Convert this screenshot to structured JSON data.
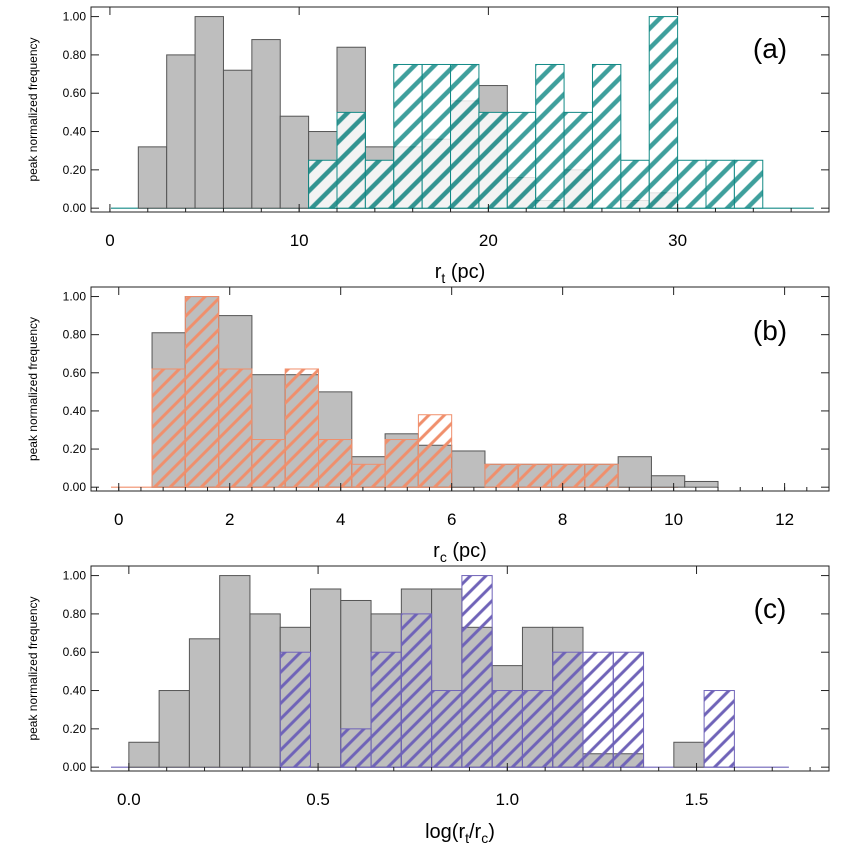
{
  "colors": {
    "gray_fill": "#bebebe",
    "gray_edge": "#555555",
    "teal": "#138a86",
    "salmon": "#f08f6c",
    "purple": "#6f63b8"
  },
  "ylabel": "peak normalized frequency",
  "chart_data": [
    {
      "type": "bar",
      "panel": "(a)",
      "xlabel": "r_t (pc)",
      "xlabel_main": "r",
      "xlabel_sub": "t",
      "xlabel_rest": " (pc)",
      "xlim": [
        -1,
        38
      ],
      "ylim": [
        -0.02,
        1.05
      ],
      "bin_width": 1.5,
      "grid": false,
      "xticks": [
        0,
        10,
        20,
        30
      ],
      "yticks": [
        0.0,
        0.2,
        0.4,
        0.6,
        0.8,
        1.0
      ],
      "ytick_labels": [
        "0.00",
        "0.20",
        "0.40",
        "0.60",
        "0.80",
        "1.00"
      ],
      "series": [
        {
          "style": "solid-gray",
          "bin_starts": [
            1.5,
            3.0,
            4.5,
            6.0,
            7.5,
            9.0,
            10.5,
            12.0,
            13.5,
            15.0,
            16.5,
            18.0,
            19.5,
            21.0,
            22.5,
            24.0,
            25.5,
            27.0,
            28.5
          ],
          "values": [
            0.32,
            0.8,
            1.0,
            0.72,
            0.88,
            0.48,
            0.4,
            0.84,
            0.32,
            0.32,
            0.36,
            0.56,
            0.64,
            0.16,
            0.04,
            0.2,
            0.0,
            0.04,
            0.08
          ]
        },
        {
          "style": "hatched-teal",
          "bin_starts": [
            10.5,
            12.0,
            13.5,
            15.0,
            16.5,
            18.0,
            19.5,
            21.0,
            22.5,
            24.0,
            25.5,
            27.0,
            28.5,
            30.0,
            31.5,
            33.0
          ],
          "values": [
            0.25,
            0.5,
            0.25,
            0.75,
            0.75,
            0.75,
            0.5,
            0.5,
            0.75,
            0.5,
            0.75,
            0.25,
            1.0,
            0.25,
            0.25,
            0.25
          ]
        }
      ]
    },
    {
      "type": "bar",
      "panel": "(b)",
      "xlabel": "r_c (pc)",
      "xlabel_main": "r",
      "xlabel_sub": "c",
      "xlabel_rest": " (pc)",
      "xlim": [
        -0.5,
        12.8
      ],
      "ylim": [
        -0.02,
        1.05
      ],
      "bin_width": 0.6,
      "grid": false,
      "xticks": [
        0,
        2,
        4,
        6,
        8,
        10,
        12
      ],
      "yticks": [
        0.0,
        0.2,
        0.4,
        0.6,
        0.8,
        1.0
      ],
      "ytick_labels": [
        "0.00",
        "0.20",
        "0.40",
        "0.60",
        "0.80",
        "1.00"
      ],
      "series": [
        {
          "style": "solid-gray",
          "bin_starts": [
            0.6,
            1.2,
            1.8,
            2.4,
            3.0,
            3.6,
            4.2,
            4.8,
            5.4,
            6.0,
            6.6,
            7.2,
            7.8,
            8.4,
            9.0,
            9.6,
            10.2
          ],
          "values": [
            0.81,
            1.0,
            0.9,
            0.59,
            0.59,
            0.5,
            0.16,
            0.28,
            0.22,
            0.19,
            0.12,
            0.12,
            0.12,
            0.12,
            0.16,
            0.06,
            0.03
          ]
        },
        {
          "style": "hatched-salmon",
          "bin_starts": [
            0.6,
            1.2,
            1.8,
            2.4,
            3.0,
            3.6,
            4.2,
            4.8,
            5.4,
            6.0,
            6.6,
            7.2,
            7.8,
            8.4
          ],
          "values": [
            0.62,
            1.0,
            0.62,
            0.25,
            0.62,
            0.25,
            0.12,
            0.25,
            0.38,
            0.0,
            0.12,
            0.12,
            0.12,
            0.12
          ]
        }
      ]
    },
    {
      "type": "bar",
      "panel": "(c)",
      "xlabel": "log(r_t/r_c)",
      "xlim": [
        -0.1,
        1.85
      ],
      "ylim": [
        -0.02,
        1.05
      ],
      "bin_width": 0.08,
      "grid": false,
      "xticks": [
        0.0,
        0.5,
        1.0,
        1.5
      ],
      "xtick_labels": [
        "0.0",
        "0.5",
        "1.0",
        "1.5"
      ],
      "yticks": [
        0.0,
        0.2,
        0.4,
        0.6,
        0.8,
        1.0
      ],
      "ytick_labels": [
        "0.00",
        "0.20",
        "0.40",
        "0.60",
        "0.80",
        "1.00"
      ],
      "series": [
        {
          "style": "solid-gray",
          "bin_starts": [
            0.0,
            0.08,
            0.16,
            0.24,
            0.32,
            0.4,
            0.48,
            0.56,
            0.64,
            0.72,
            0.8,
            0.88,
            0.96,
            1.04,
            1.12,
            1.2,
            1.28,
            1.36,
            1.44
          ],
          "values": [
            0.13,
            0.4,
            0.67,
            1.0,
            0.8,
            0.73,
            0.93,
            0.87,
            0.8,
            0.93,
            0.93,
            0.73,
            0.53,
            0.73,
            0.73,
            0.07,
            0.07,
            0.0,
            0.13
          ]
        },
        {
          "style": "hatched-purple",
          "bin_starts": [
            0.4,
            0.48,
            0.56,
            0.64,
            0.72,
            0.8,
            0.88,
            0.96,
            1.04,
            1.12,
            1.2,
            1.28,
            1.36,
            1.44,
            1.52
          ],
          "values": [
            0.6,
            0.0,
            0.2,
            0.6,
            0.8,
            0.4,
            1.0,
            0.4,
            0.4,
            0.6,
            0.6,
            0.6,
            0.0,
            0.0,
            0.4
          ]
        }
      ]
    }
  ]
}
